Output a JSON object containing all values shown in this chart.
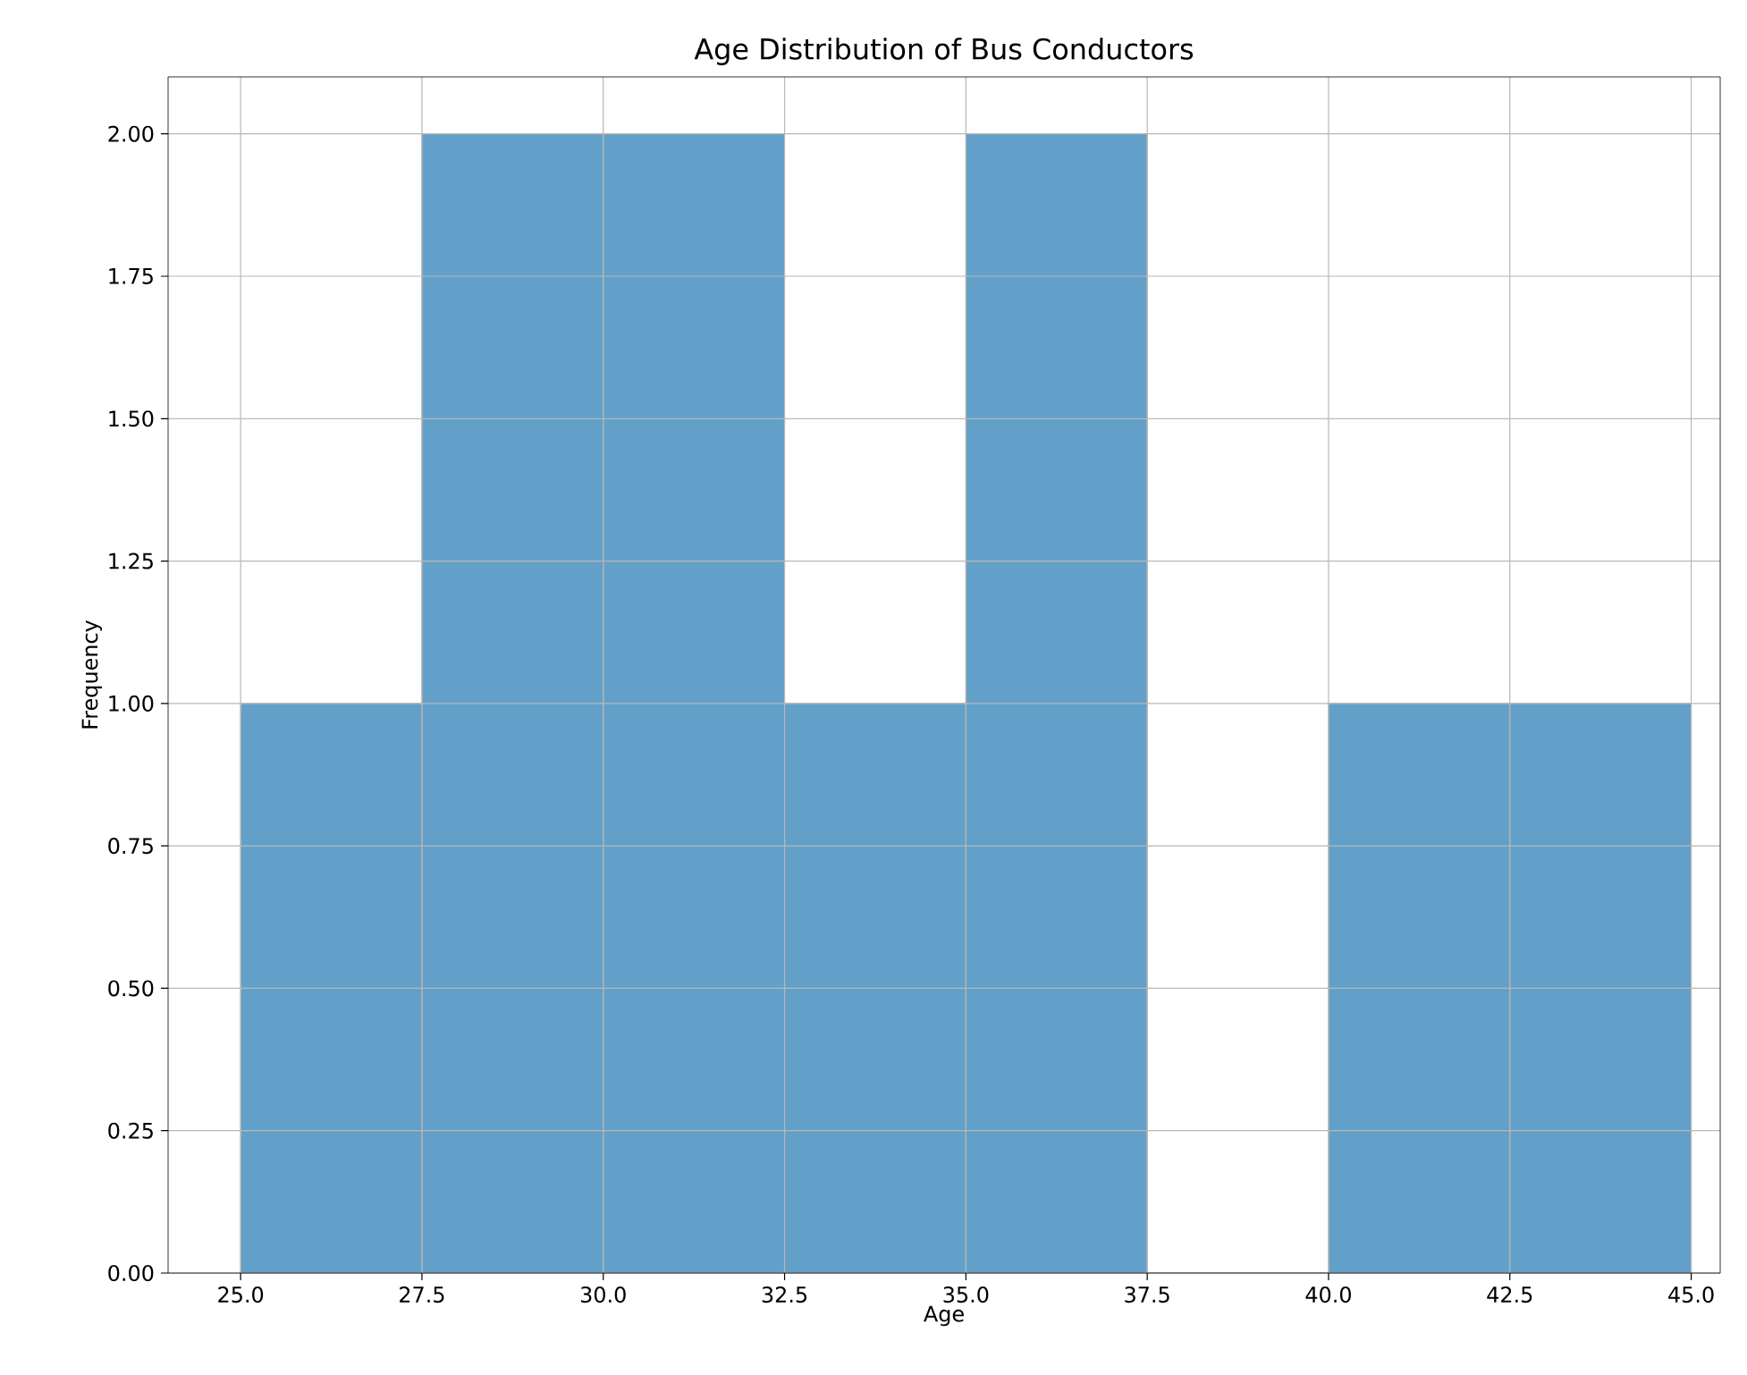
{
  "chart_data": {
    "type": "histogram",
    "title": "Age Distribution of Bus Conductors",
    "xlabel": "Age",
    "ylabel": "Frequency",
    "bins": [
      25,
      27.5,
      30,
      32.5,
      35,
      37.5,
      40,
      42.5,
      45
    ],
    "values": [
      1,
      2,
      2,
      1,
      2,
      0,
      1,
      1
    ],
    "color": "#62a0ca",
    "xlim": [
      24,
      45.4
    ],
    "ylim": [
      0,
      2.1
    ],
    "xticks": [
      {
        "value": 25,
        "label": "25.0"
      },
      {
        "value": 27.5,
        "label": "27.5"
      },
      {
        "value": 30,
        "label": "30.0"
      },
      {
        "value": 32.5,
        "label": "32.5"
      },
      {
        "value": 35,
        "label": "35.0"
      },
      {
        "value": 37.5,
        "label": "37.5"
      },
      {
        "value": 40,
        "label": "40.0"
      },
      {
        "value": 42.5,
        "label": "42.5"
      },
      {
        "value": 45,
        "label": "45.0"
      }
    ],
    "yticks": [
      {
        "value": 0,
        "label": "0.00"
      },
      {
        "value": 0.25,
        "label": "0.25"
      },
      {
        "value": 0.5,
        "label": "0.50"
      },
      {
        "value": 0.75,
        "label": "0.75"
      },
      {
        "value": 1,
        "label": "1.00"
      },
      {
        "value": 1.25,
        "label": "1.25"
      },
      {
        "value": 1.5,
        "label": "1.50"
      },
      {
        "value": 1.75,
        "label": "1.75"
      },
      {
        "value": 2,
        "label": "2.00"
      }
    ],
    "grid": true
  }
}
